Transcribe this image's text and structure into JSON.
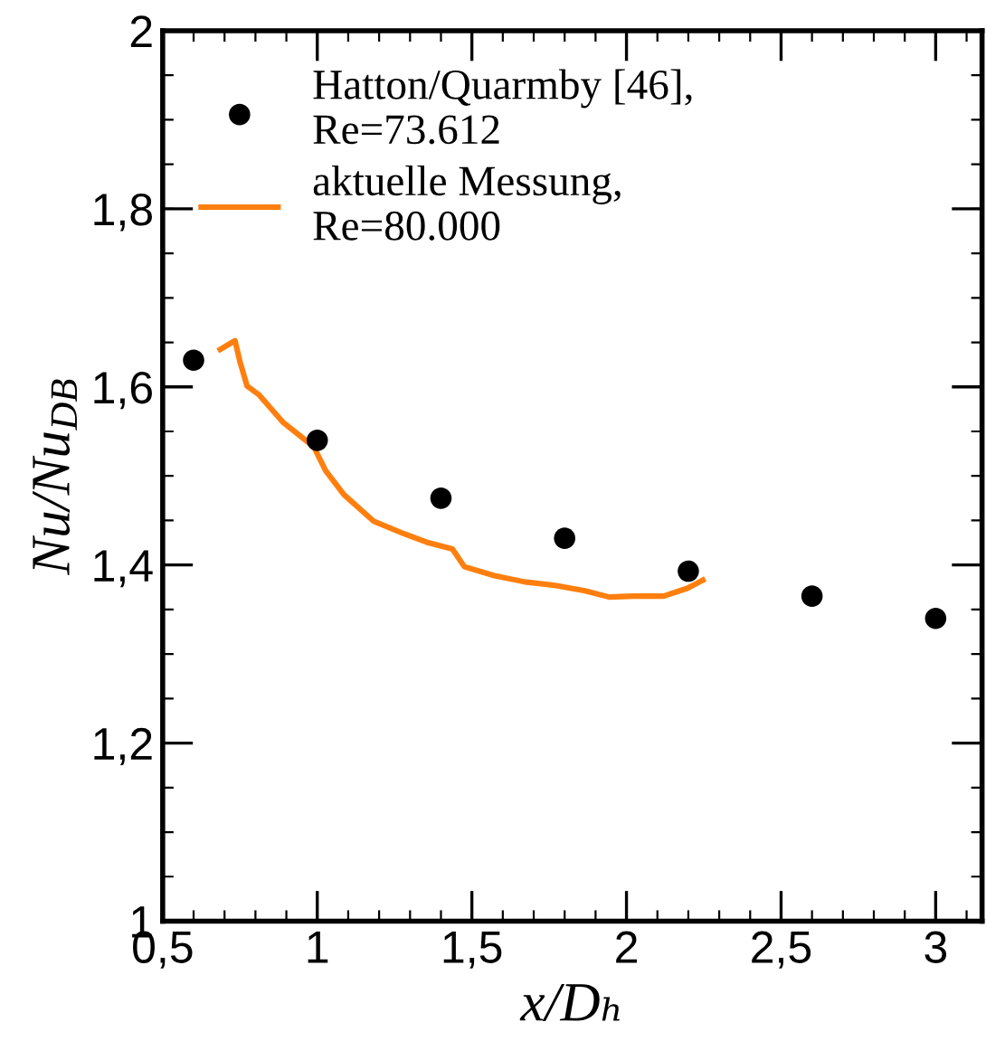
{
  "chart_data": {
    "type": "line",
    "xlabel": "x/Dₕ",
    "ylabel": "Nu/Nu$_{DB}$",
    "xlim": [
      0.5,
      3.15
    ],
    "ylim": [
      1,
      2
    ],
    "xticks": [
      {
        "value": 0.5,
        "label": "0,5"
      },
      {
        "value": 1,
        "label": "1"
      },
      {
        "value": 1.5,
        "label": "1,5"
      },
      {
        "value": 2,
        "label": "2"
      },
      {
        "value": 2.5,
        "label": "2,5"
      },
      {
        "value": 3,
        "label": "3"
      }
    ],
    "yticks": [
      {
        "value": 1,
        "label": "1"
      },
      {
        "value": 1.2,
        "label": "1,2"
      },
      {
        "value": 1.4,
        "label": "1,4"
      },
      {
        "value": 1.6,
        "label": "1,6"
      },
      {
        "value": 1.8,
        "label": "1,8"
      },
      {
        "value": 2,
        "label": "2"
      }
    ],
    "grid": false,
    "legend": "top left",
    "series": [
      {
        "type": "scatter",
        "name": "Hatton/Quarmby [46],\nRe=73.612",
        "color": "#000000",
        "marker": "circle",
        "x": [
          0.6,
          1.0,
          1.4,
          1.8,
          2.2,
          2.6,
          3.0
        ],
        "values": [
          1.63,
          1.54,
          1.475,
          1.43,
          1.393,
          1.365,
          1.34
        ]
      },
      {
        "name": "aktuelle Messung,\nRe=80.000",
        "color": "#ff7f0e",
        "line_style": "solid",
        "x": [
          0.686,
          0.734,
          0.75,
          0.773,
          0.812,
          0.89,
          0.988,
          1.027,
          1.086,
          1.183,
          1.281,
          1.359,
          1.437,
          1.476,
          1.573,
          1.671,
          1.769,
          1.866,
          1.944,
          2.022,
          2.12,
          2.198,
          2.247
        ],
        "values": [
          1.642,
          1.652,
          1.628,
          1.601,
          1.591,
          1.56,
          1.533,
          1.506,
          1.479,
          1.449,
          1.435,
          1.425,
          1.418,
          1.398,
          1.388,
          1.381,
          1.377,
          1.371,
          1.364,
          1.365,
          1.365,
          1.374,
          1.383
        ]
      }
    ]
  }
}
